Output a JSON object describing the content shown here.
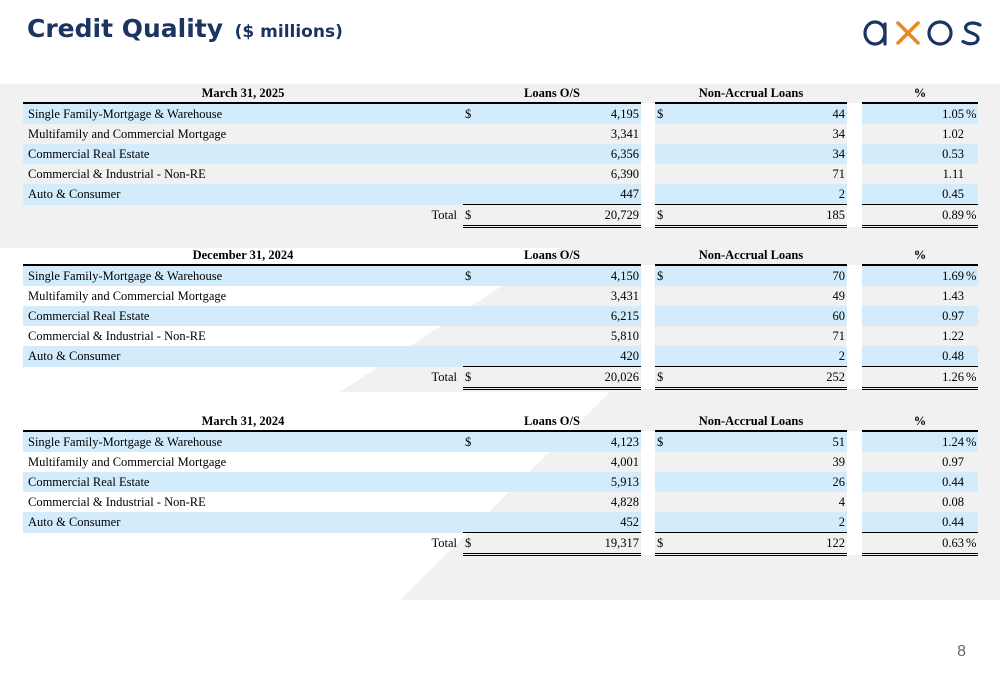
{
  "header": {
    "title": "Credit Quality",
    "subtitle": "($ millions)",
    "logo_text": "axos",
    "page_number": "8"
  },
  "colors": {
    "title": "#1b3461",
    "row_shade": "#d2ecfb",
    "logo_x": "#e98a28"
  },
  "tables": [
    {
      "period": "March 31, 2025",
      "col_loans": "Loans O/S",
      "col_nonaccrual": "Non-Accrual Loans",
      "col_pct": "%",
      "rows": [
        {
          "label": "Single Family-Mortgage & Warehouse",
          "cur1": "$",
          "loans": "4,195",
          "cur2": "$",
          "nonaccrual": "44",
          "pct": "1.05",
          "psign": "%"
        },
        {
          "label": "Multifamily and Commercial Mortgage",
          "cur1": "",
          "loans": "3,341",
          "cur2": "",
          "nonaccrual": "34",
          "pct": "1.02",
          "psign": ""
        },
        {
          "label": "Commercial Real Estate",
          "cur1": "",
          "loans": "6,356",
          "cur2": "",
          "nonaccrual": "34",
          "pct": "0.53",
          "psign": ""
        },
        {
          "label": "Commercial & Industrial - Non-RE",
          "cur1": "",
          "loans": "6,390",
          "cur2": "",
          "nonaccrual": "71",
          "pct": "1.11",
          "psign": ""
        },
        {
          "label": "Auto & Consumer",
          "cur1": "",
          "loans": "447",
          "cur2": "",
          "nonaccrual": "2",
          "pct": "0.45",
          "psign": ""
        }
      ],
      "total": {
        "label": "Total",
        "cur1": "$",
        "loans": "20,729",
        "cur2": "$",
        "nonaccrual": "185",
        "pct": "0.89",
        "psign": "%"
      }
    },
    {
      "period": "December 31, 2024",
      "col_loans": "Loans O/S",
      "col_nonaccrual": "Non-Accrual Loans",
      "col_pct": "%",
      "rows": [
        {
          "label": "Single Family-Mortgage & Warehouse",
          "cur1": "$",
          "loans": "4,150",
          "cur2": "$",
          "nonaccrual": "70",
          "pct": "1.69",
          "psign": "%"
        },
        {
          "label": "Multifamily and Commercial Mortgage",
          "cur1": "",
          "loans": "3,431",
          "cur2": "",
          "nonaccrual": "49",
          "pct": "1.43",
          "psign": ""
        },
        {
          "label": "Commercial Real Estate",
          "cur1": "",
          "loans": "6,215",
          "cur2": "",
          "nonaccrual": "60",
          "pct": "0.97",
          "psign": ""
        },
        {
          "label": "Commercial & Industrial - Non-RE",
          "cur1": "",
          "loans": "5,810",
          "cur2": "",
          "nonaccrual": "71",
          "pct": "1.22",
          "psign": ""
        },
        {
          "label": "Auto & Consumer",
          "cur1": "",
          "loans": "420",
          "cur2": "",
          "nonaccrual": "2",
          "pct": "0.48",
          "psign": ""
        }
      ],
      "total": {
        "label": "Total",
        "cur1": "$",
        "loans": "20,026",
        "cur2": "$",
        "nonaccrual": "252",
        "pct": "1.26",
        "psign": "%"
      }
    },
    {
      "period": "March 31, 2024",
      "col_loans": "Loans O/S",
      "col_nonaccrual": "Non-Accrual Loans",
      "col_pct": "%",
      "rows": [
        {
          "label": "Single Family-Mortgage & Warehouse",
          "cur1": "$",
          "loans": "4,123",
          "cur2": "$",
          "nonaccrual": "51",
          "pct": "1.24",
          "psign": "%"
        },
        {
          "label": "Multifamily and Commercial Mortgage",
          "cur1": "",
          "loans": "4,001",
          "cur2": "",
          "nonaccrual": "39",
          "pct": "0.97",
          "psign": ""
        },
        {
          "label": "Commercial Real Estate",
          "cur1": "",
          "loans": "5,913",
          "cur2": "",
          "nonaccrual": "26",
          "pct": "0.44",
          "psign": ""
        },
        {
          "label": "Commercial & Industrial - Non-RE",
          "cur1": "",
          "loans": "4,828",
          "cur2": "",
          "nonaccrual": "4",
          "pct": "0.08",
          "psign": ""
        },
        {
          "label": "Auto & Consumer",
          "cur1": "",
          "loans": "452",
          "cur2": "",
          "nonaccrual": "2",
          "pct": "0.44",
          "psign": ""
        }
      ],
      "total": {
        "label": "Total",
        "cur1": "$",
        "loans": "19,317",
        "cur2": "$",
        "nonaccrual": "122",
        "pct": "0.63",
        "psign": "%"
      }
    }
  ]
}
